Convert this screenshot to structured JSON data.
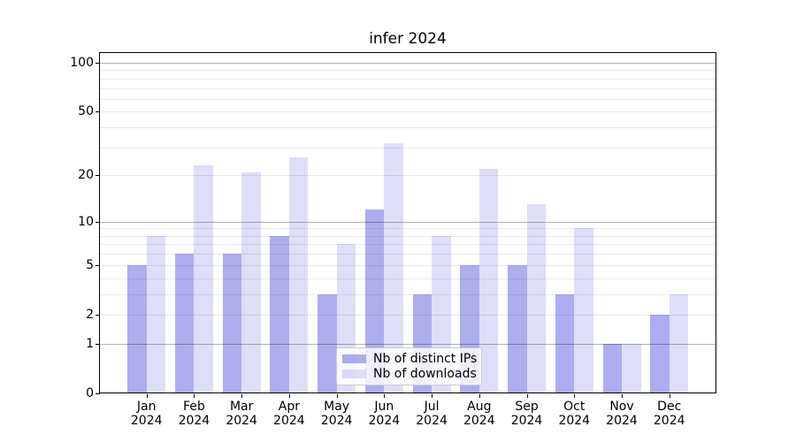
{
  "title": "infer 2024",
  "chart_data": {
    "type": "bar",
    "title": "infer 2024",
    "xlabel": "",
    "ylabel": "",
    "y_scale": "log10(value+1)",
    "ylim": [
      0,
      115
    ],
    "categories": [
      "Jan",
      "Feb",
      "Mar",
      "Apr",
      "May",
      "Jun",
      "Jul",
      "Aug",
      "Sep",
      "Oct",
      "Nov",
      "Dec"
    ],
    "year": "2024",
    "series": [
      {
        "name": "Nb of distinct IPs",
        "color": "rgba(106,106,228,0.55)",
        "values": [
          5,
          6,
          6,
          8,
          3,
          12,
          3,
          5,
          5,
          3,
          1,
          2
        ]
      },
      {
        "name": "Nb of downloads",
        "color": "rgba(106,106,228,0.22)",
        "values": [
          8,
          23,
          21,
          26,
          7,
          32,
          8,
          22,
          13,
          9,
          1,
          3
        ]
      }
    ],
    "yticks": [
      100,
      50,
      20,
      10,
      5,
      2,
      1,
      0
    ],
    "gridlines": {
      "major": [
        1,
        10,
        100
      ],
      "minor": [
        2,
        3,
        4,
        5,
        6,
        7,
        8,
        9,
        20,
        30,
        40,
        50,
        60,
        70,
        80,
        90
      ]
    },
    "grid_major_color": "#b3b3b3",
    "grid_minor_color": "#ebebeb",
    "legend_position": "lower center inside plot",
    "legend_entries": [
      "Nb of distinct IPs",
      "Nb of downloads"
    ]
  }
}
